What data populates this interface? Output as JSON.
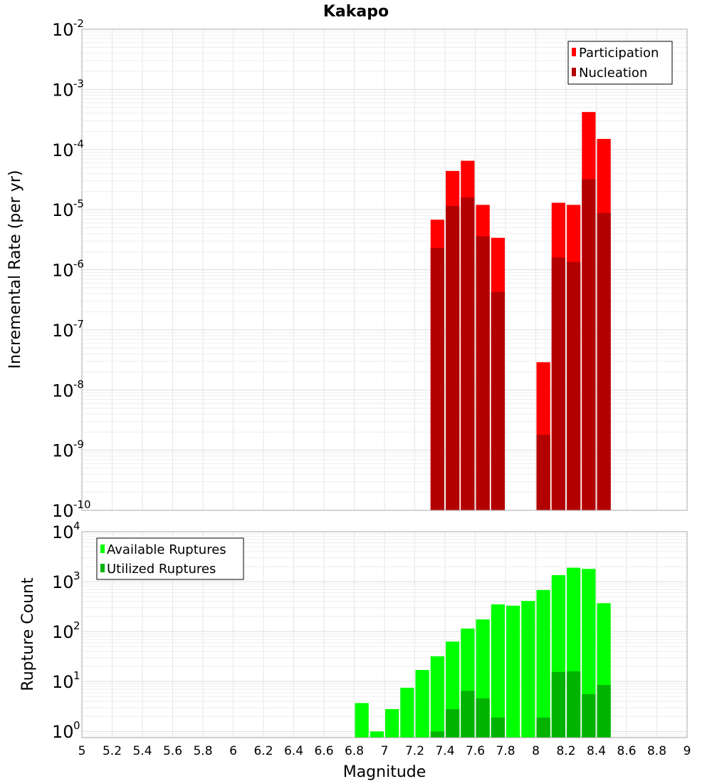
{
  "chart_data": [
    {
      "type": "bar",
      "title": "Kakapo",
      "xlabel": "",
      "ylabel": "Incremental Rate (per yr)",
      "y_scale": "log",
      "ylim": [
        1e-10,
        0.01
      ],
      "xlim": [
        5,
        9
      ],
      "bar_width": 0.1,
      "grid": true,
      "legend_position": "top-right",
      "y_ticks": [
        {
          "base": "10",
          "exp": "-2",
          "value": 0.01
        },
        {
          "base": "10",
          "exp": "-3",
          "value": 0.001
        },
        {
          "base": "10",
          "exp": "-4",
          "value": 0.0001
        },
        {
          "base": "10",
          "exp": "-5",
          "value": 1e-05
        },
        {
          "base": "10",
          "exp": "-6",
          "value": 1e-06
        },
        {
          "base": "10",
          "exp": "-7",
          "value": 1e-07
        },
        {
          "base": "10",
          "exp": "-8",
          "value": 1e-08
        },
        {
          "base": "10",
          "exp": "-9",
          "value": 1e-09
        },
        {
          "base": "10",
          "exp": "-10",
          "value": 1e-10
        }
      ],
      "x": [
        7.35,
        7.45,
        7.55,
        7.65,
        7.75,
        8.05,
        8.15,
        8.25,
        8.35,
        8.45
      ],
      "series": [
        {
          "name": "Participation",
          "color": "#ff0000",
          "values": [
            6.8e-06,
            4.4e-05,
            6.5e-05,
            1.2e-05,
            3.4e-06,
            2.9e-08,
            1.3e-05,
            1.2e-05,
            0.00042,
            0.00015
          ]
        },
        {
          "name": "Nucleation",
          "color": "#b30000",
          "values": [
            2.3e-06,
            1.15e-05,
            1.6e-05,
            3.6e-06,
            4.3e-07,
            1.8e-09,
            1.6e-06,
            1.35e-06,
            3.2e-05,
            8.8e-06
          ]
        }
      ]
    },
    {
      "type": "bar",
      "title": "",
      "xlabel": "Magnitude",
      "ylabel": "Rupture Count",
      "y_scale": "log",
      "ylim": [
        0.75,
        10000
      ],
      "xlim": [
        5,
        9
      ],
      "bar_width": 0.1,
      "grid": true,
      "legend_position": "top-left",
      "y_ticks": [
        {
          "base": "10",
          "exp": "4",
          "value": 10000
        },
        {
          "base": "10",
          "exp": "3",
          "value": 1000
        },
        {
          "base": "10",
          "exp": "2",
          "value": 100
        },
        {
          "base": "10",
          "exp": "1",
          "value": 10
        },
        {
          "base": "10",
          "exp": "0",
          "value": 1
        }
      ],
      "x_ticks": [
        "5",
        "5.2",
        "5.4",
        "5.6",
        "5.8",
        "6",
        "6.2",
        "6.4",
        "6.6",
        "6.8",
        "7",
        "7.2",
        "7.4",
        "7.6",
        "7.8",
        "8",
        "8.2",
        "8.4",
        "8.6",
        "8.8",
        "9"
      ],
      "x": [
        6.85,
        6.95,
        7.05,
        7.15,
        7.25,
        7.35,
        7.45,
        7.55,
        7.65,
        7.75,
        7.85,
        7.95,
        8.05,
        8.15,
        8.25,
        8.35,
        8.45
      ],
      "series": [
        {
          "name": "Available Ruptures",
          "color": "#00ff00",
          "values": [
            3.7,
            1,
            2.8,
            7.5,
            17,
            32,
            63,
            115,
            175,
            350,
            330,
            410,
            680,
            1350,
            1900,
            1800,
            370
          ]
        },
        {
          "name": "Utilized Ruptures",
          "color": "#00b300",
          "values": [
            null,
            null,
            null,
            null,
            null,
            1,
            2.8,
            6.5,
            4.6,
            1.9,
            null,
            null,
            1.9,
            15.5,
            16,
            5.6,
            8.5
          ]
        }
      ]
    }
  ]
}
